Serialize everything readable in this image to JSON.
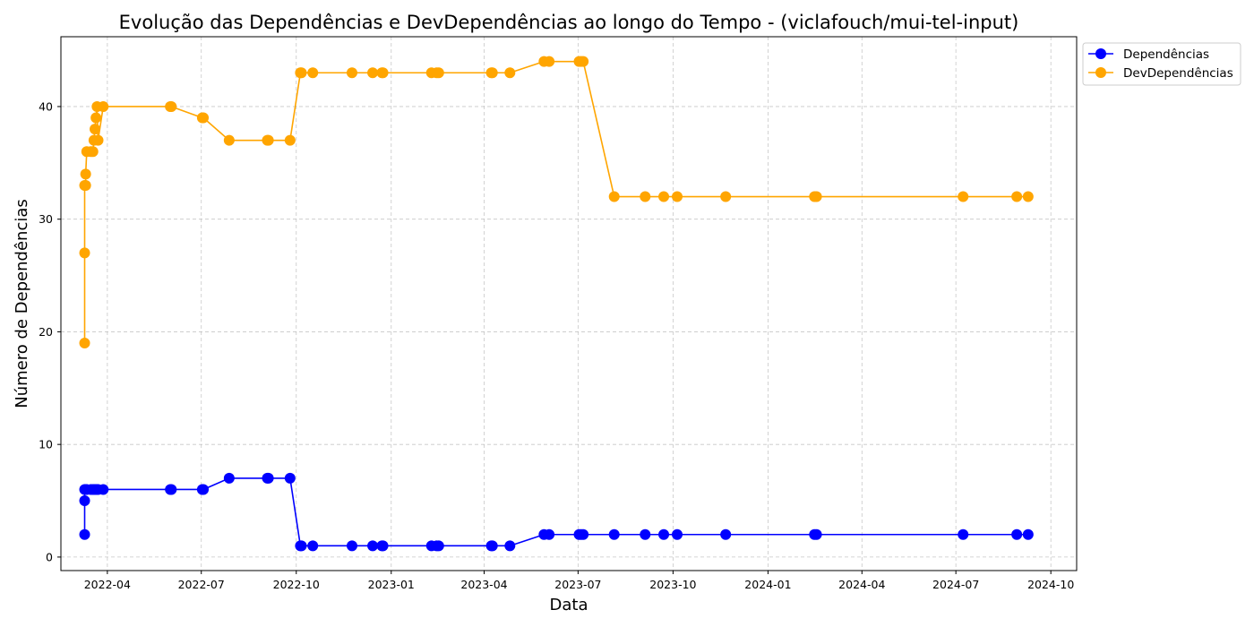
{
  "chart_data": {
    "type": "line",
    "title": "Evolução das Dependências e DevDependências ao longo do Tempo - (viclafouch/mui-tel-input)",
    "xlabel": "Data",
    "ylabel": "Número de Dependências",
    "x_tick_labels": [
      "2022-04",
      "2022-07",
      "2022-10",
      "2023-01",
      "2023-04",
      "2023-07",
      "2023-10",
      "2024-01",
      "2024-04",
      "2024-07",
      "2024-10"
    ],
    "y_tick_labels": [
      "0",
      "10",
      "20",
      "30",
      "40"
    ],
    "ylim": [
      -1.2,
      46.2
    ],
    "xlim": [
      "2022-02-15",
      "2024-10-26"
    ],
    "grid": true,
    "legend_position": "top-right outside",
    "x": [
      "2022-03-10",
      "2022-03-10",
      "2022-03-10",
      "2022-03-11",
      "2022-03-11",
      "2022-03-12",
      "2022-03-16",
      "2022-03-18",
      "2022-03-19",
      "2022-03-20",
      "2022-03-21",
      "2022-03-22",
      "2022-03-23",
      "2022-03-28",
      "2022-06-01",
      "2022-06-02",
      "2022-07-02",
      "2022-07-03",
      "2022-07-28",
      "2022-09-03",
      "2022-09-04",
      "2022-09-25",
      "2022-10-05",
      "2022-10-06",
      "2022-10-17",
      "2022-11-24",
      "2022-12-14",
      "2022-12-23",
      "2022-12-24",
      "2023-02-09",
      "2023-02-14",
      "2023-02-16",
      "2023-04-08",
      "2023-04-09",
      "2023-04-26",
      "2023-05-29",
      "2023-06-03",
      "2023-07-02",
      "2023-07-04",
      "2023-07-06",
      "2023-08-05",
      "2023-09-04",
      "2023-09-22",
      "2023-10-05",
      "2023-11-21",
      "2024-02-15",
      "2024-02-17",
      "2024-07-08",
      "2024-08-29",
      "2024-09-09"
    ],
    "series": [
      {
        "name": "Dependências",
        "color": "#0000ff",
        "values": [
          2,
          5,
          6,
          6,
          6,
          6,
          6,
          6,
          6,
          6,
          6,
          6,
          6,
          6,
          6,
          6,
          6,
          6,
          7,
          7,
          7,
          7,
          1,
          1,
          1,
          1,
          1,
          1,
          1,
          1,
          1,
          1,
          1,
          1,
          1,
          2,
          2,
          2,
          2,
          2,
          2,
          2,
          2,
          2,
          2,
          2,
          2,
          2,
          2,
          2
        ]
      },
      {
        "name": "DevDependências",
        "color": "#ffa500",
        "values": [
          19,
          27,
          33,
          33,
          34,
          36,
          36,
          36,
          37,
          38,
          39,
          40,
          37,
          40,
          40,
          40,
          39,
          39,
          37,
          37,
          37,
          37,
          43,
          43,
          43,
          43,
          43,
          43,
          43,
          43,
          43,
          43,
          43,
          43,
          43,
          44,
          44,
          44,
          44,
          44,
          32,
          32,
          32,
          32,
          32,
          32,
          32,
          32,
          32,
          32
        ]
      }
    ]
  }
}
